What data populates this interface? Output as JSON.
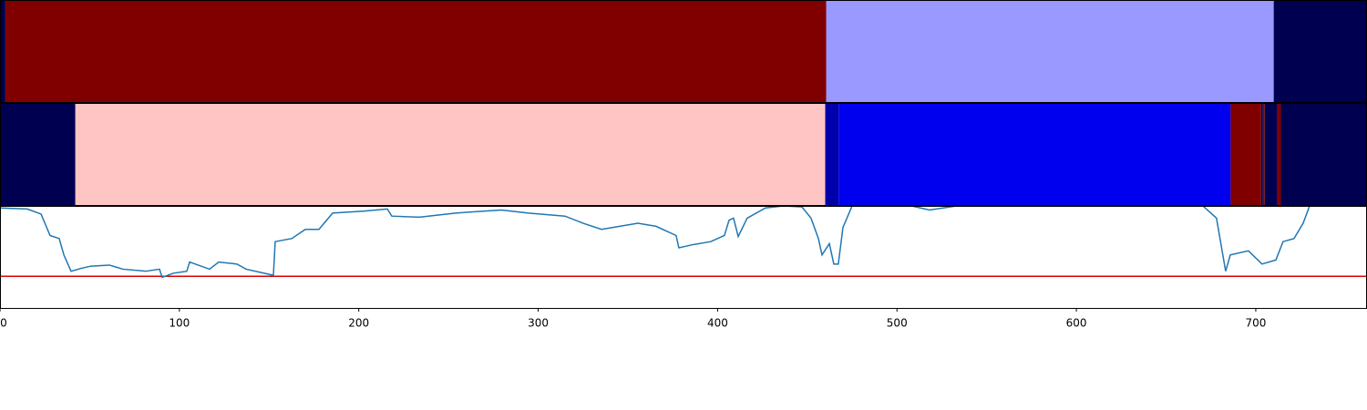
{
  "chart_data": {
    "type": "line",
    "xlim": [
      0,
      762
    ],
    "ylim": [
      0,
      1
    ],
    "xticks": [
      0,
      100,
      200,
      300,
      400,
      500,
      600,
      700
    ],
    "color": "#1f77b4",
    "threshold": 0.31,
    "threshold_color": "#dd0000",
    "segment_rows": [
      [
        {
          "start": 0,
          "end": 3,
          "color": "#000050"
        },
        {
          "start": 3,
          "end": 460.5,
          "color": "#800000"
        },
        {
          "start": 460.5,
          "end": 710,
          "color": "#9999ff"
        },
        {
          "start": 710,
          "end": 762,
          "color": "#000050"
        }
      ],
      [
        {
          "start": 0,
          "end": 42,
          "color": "#000050"
        },
        {
          "start": 42,
          "end": 460,
          "color": "#ffc4c4"
        },
        {
          "start": 460,
          "end": 467.5,
          "color": "#0000aa"
        },
        {
          "start": 467.5,
          "end": 686,
          "color": "#0000ee"
        },
        {
          "start": 686,
          "end": 703,
          "color": "#800000"
        },
        {
          "start": 703,
          "end": 704,
          "color": "#000050"
        },
        {
          "start": 704,
          "end": 705,
          "color": "#800000"
        },
        {
          "start": 705,
          "end": 712,
          "color": "#000050"
        },
        {
          "start": 712,
          "end": 714,
          "color": "#800000"
        },
        {
          "start": 714,
          "end": 762,
          "color": "#000050"
        }
      ]
    ],
    "x": [
      0,
      15.2,
      22.9,
      27.9,
      33.0,
      35.6,
      39.6,
      45.7,
      50.8,
      61.0,
      68.6,
      81.3,
      88.9,
      90.4,
      96.5,
      104.1,
      105.7,
      116.8,
      121.9,
      132.1,
      137.2,
      152.4,
      153.4,
      162.6,
      170.2,
      177.8,
      185.4,
      203.2,
      215.9,
      218.4,
      233.7,
      254.0,
      279.4,
      294.6,
      314.9,
      325.1,
      335.3,
      345.4,
      355.6,
      365.7,
      376.9,
      378.4,
      386.1,
      396.2,
      403.8,
      406.4,
      408.9,
      411.5,
      416.5,
      426.7,
      436.9,
      447.0,
      452.1,
      456.2,
      458.2,
      462.3,
      464.8,
      467.3,
      469.9,
      475.0,
      508.0,
      518.1,
      533.4,
      609.6,
      670.5,
      678.1,
      683.2,
      685.8,
      695.9,
      703.5,
      711.2,
      715.2,
      721.3,
      726.4,
      730.0,
      762
    ],
    "values": [
      0.98,
      0.97,
      0.92,
      0.71,
      0.68,
      0.52,
      0.36,
      0.39,
      0.41,
      0.42,
      0.38,
      0.36,
      0.38,
      0.3,
      0.34,
      0.36,
      0.45,
      0.38,
      0.45,
      0.43,
      0.38,
      0.32,
      0.65,
      0.68,
      0.77,
      0.77,
      0.93,
      0.95,
      0.97,
      0.9,
      0.89,
      0.93,
      0.96,
      0.93,
      0.9,
      0.83,
      0.77,
      0.8,
      0.83,
      0.8,
      0.71,
      0.59,
      0.62,
      0.65,
      0.71,
      0.86,
      0.88,
      0.7,
      0.88,
      0.98,
      1.0,
      0.99,
      0.88,
      0.68,
      0.52,
      0.63,
      0.43,
      0.43,
      0.79,
      1.0,
      1.0,
      0.96,
      1.0,
      1.0,
      1.0,
      0.88,
      0.36,
      0.52,
      0.56,
      0.43,
      0.47,
      0.65,
      0.68,
      0.83,
      1.0,
      1.0
    ]
  }
}
